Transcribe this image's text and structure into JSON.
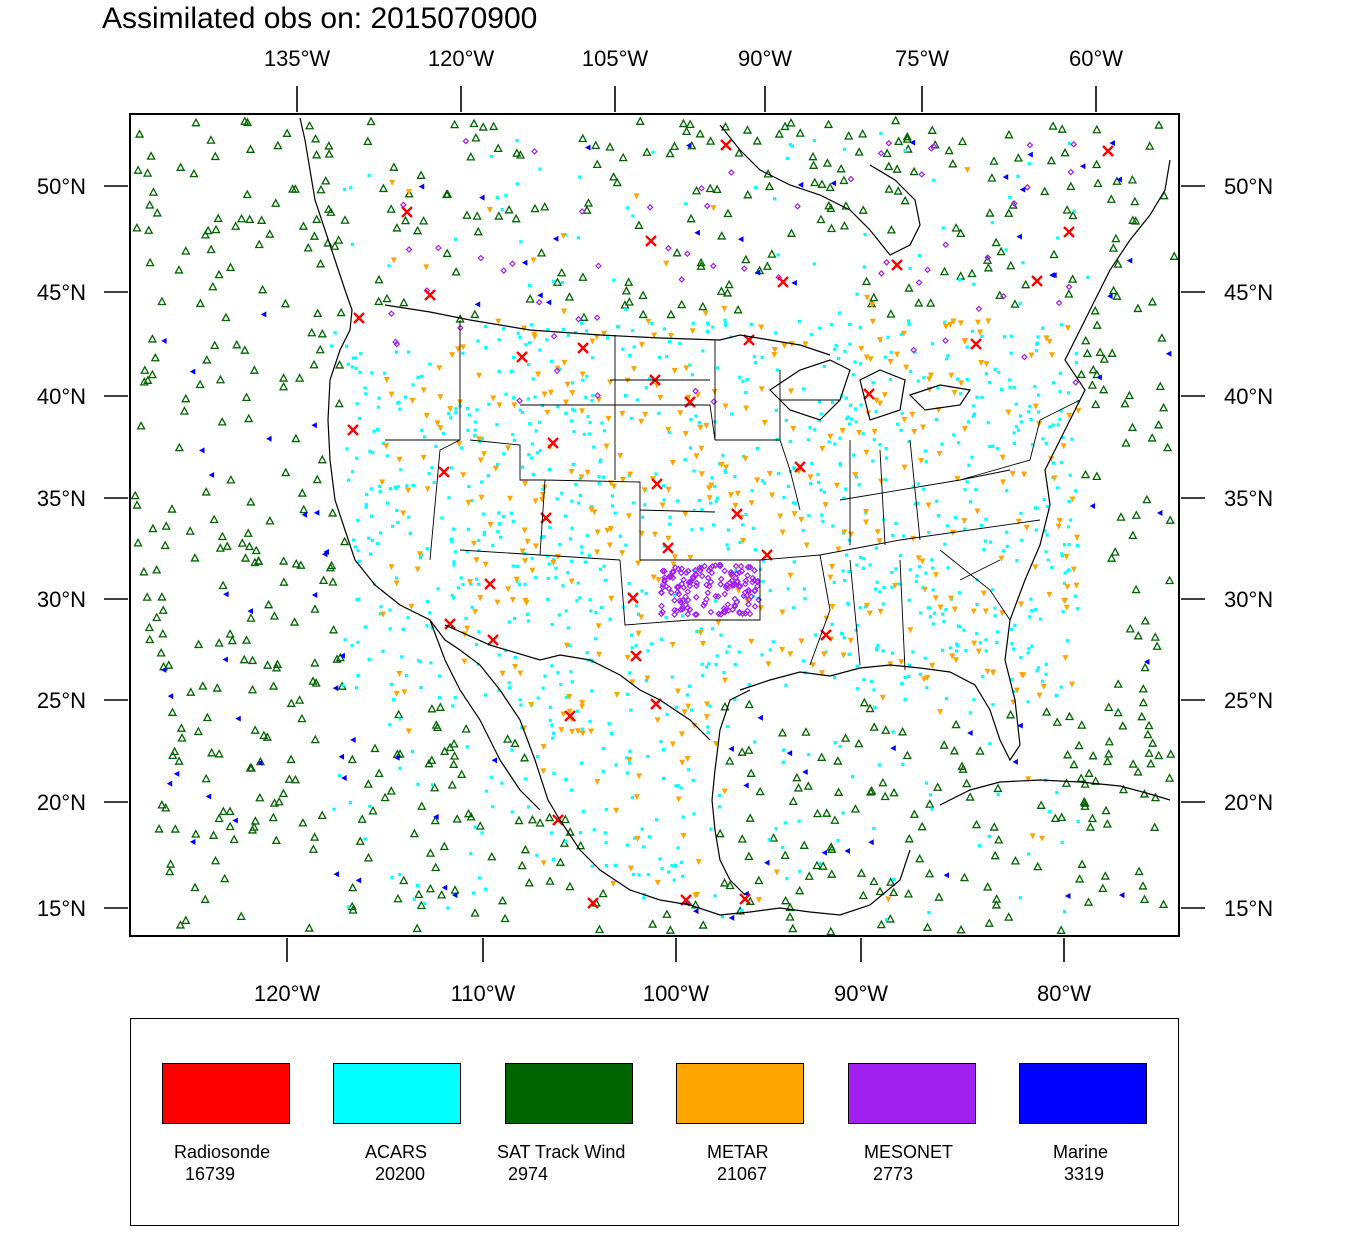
{
  "title": "Assimilated obs on: 2015070900",
  "axes": {
    "top_ticks": [
      "135°W",
      "120°W",
      "105°W",
      "90°W",
      "75°W",
      "60°W"
    ],
    "bottom_ticks": [
      "120°W",
      "110°W",
      "100°W",
      "90°W",
      "80°W"
    ],
    "left_ticks": [
      "50°N",
      "45°N",
      "40°N",
      "35°N",
      "30°N",
      "25°N",
      "20°N",
      "15°N"
    ],
    "right_ticks": [
      "50°N",
      "45°N",
      "40°N",
      "35°N",
      "30°N",
      "25°N",
      "20°N",
      "15°N"
    ]
  },
  "legend": [
    {
      "label": "Radiosonde",
      "count": "16739",
      "color": "#ff0000"
    },
    {
      "label": "ACARS",
      "count": "20200",
      "color": "#00ffff"
    },
    {
      "label": "SAT Track Wind",
      "count": "2974",
      "color": "#006400"
    },
    {
      "label": "METAR",
      "count": "21067",
      "color": "#ffa500"
    },
    {
      "label": "MESONET",
      "count": "2773",
      "color": "#a020f0"
    },
    {
      "label": "Marine",
      "count": "3319",
      "color": "#0000ff"
    }
  ],
  "colors": {
    "frame": "#000000",
    "coastline": "#000000",
    "background": "#ffffff"
  }
}
